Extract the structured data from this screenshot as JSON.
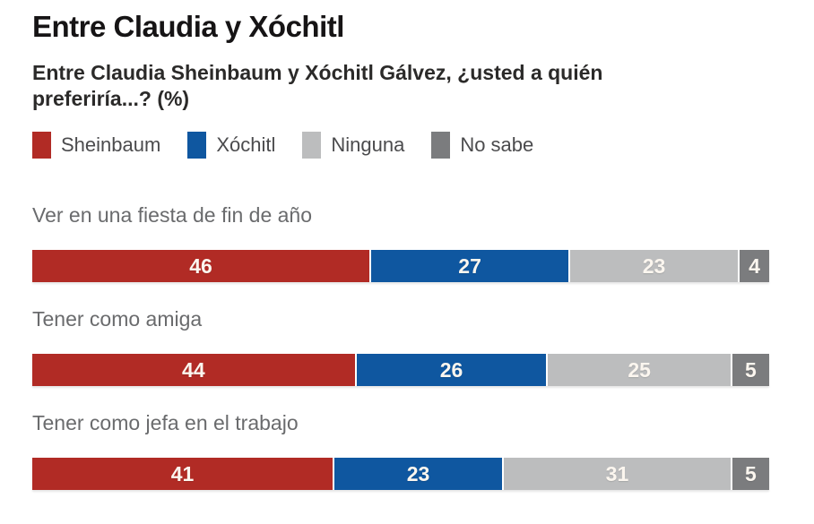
{
  "title": "Entre Claudia y Xóchitl",
  "subtitle": "Entre Claudia Sheinbaum y Xóchitl Gálvez, ¿usted a quién preferiría...?  (%)",
  "colors": {
    "sheinbaum": "#b12b25",
    "xochitl": "#0f57a0",
    "ninguna": "#bcbdbe",
    "no_sabe": "#7b7c7e",
    "value_text": "#fbf6ef"
  },
  "legend": [
    {
      "key": "sheinbaum",
      "label": "Sheinbaum",
      "color": "#b12b25"
    },
    {
      "key": "xochitl",
      "label": "Xóchitl",
      "color": "#0f57a0"
    },
    {
      "key": "ninguna",
      "label": "Ninguna",
      "color": "#bcbdbe"
    },
    {
      "key": "no-sabe",
      "label": "No sabe",
      "color": "#7b7c7e"
    }
  ],
  "chart_data": {
    "type": "bar",
    "orientation": "horizontal-stacked",
    "title": "Entre Claudia y Xóchitl",
    "question": "Entre Claudia Sheinbaum y Xóchitl Gálvez, ¿usted a quién preferiría...?",
    "unit": "%",
    "xlim": [
      0,
      100
    ],
    "series_names": [
      "Sheinbaum",
      "Xóchitl",
      "Ninguna",
      "No sabe"
    ],
    "series_keys": [
      "sheinbaum",
      "xochitl",
      "ninguna",
      "no-sabe"
    ],
    "series_colors": [
      "#b12b25",
      "#0f57a0",
      "#bcbdbe",
      "#7b7c7e"
    ],
    "categories": [
      "Ver en una fiesta de fin de año",
      "Tener como amiga",
      "Tener como jefa en el trabajo"
    ],
    "rows": [
      {
        "label": "Ver en una fiesta de fin de año",
        "values": [
          46,
          27,
          23,
          4
        ]
      },
      {
        "label": "Tener como amiga",
        "values": [
          44,
          26,
          25,
          5
        ]
      },
      {
        "label": "Tener como jefa en el trabajo",
        "values": [
          41,
          23,
          31,
          5
        ]
      }
    ],
    "legend_position": "top",
    "grid": false
  }
}
